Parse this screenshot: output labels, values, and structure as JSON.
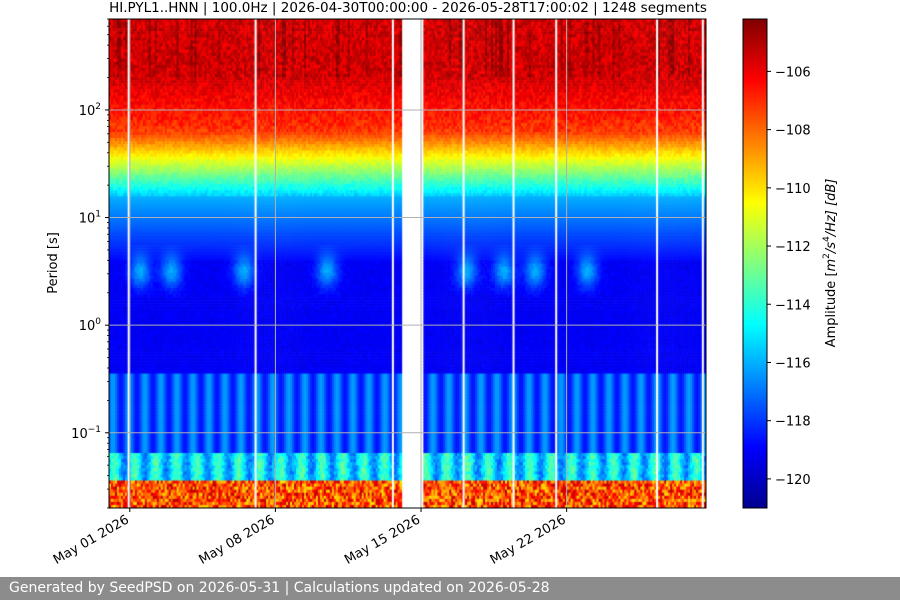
{
  "chart_data": {
    "type": "heatmap",
    "title": "HI.PYL1..HNN | 100.0Hz | 2026-04-30T00:00:00 - 2026-05-28T17:00:02 | 1248 segments",
    "ylabel": "Period [s]",
    "yscale": "log",
    "ylim": [
      0.02,
      700
    ],
    "y_ticks": [
      {
        "value": 0.1,
        "base": "10",
        "exp": "−1"
      },
      {
        "value": 1,
        "base": "10",
        "exp": "0"
      },
      {
        "value": 10,
        "base": "10",
        "exp": "1"
      },
      {
        "value": 100,
        "base": "10",
        "exp": "2"
      }
    ],
    "x_ticks": [
      {
        "day": 1,
        "label": "May 01 2026"
      },
      {
        "day": 8,
        "label": "May 08 2026"
      },
      {
        "day": 15,
        "label": "May 15 2026"
      },
      {
        "day": 22,
        "label": "May 22 2026"
      }
    ],
    "xlim_days": [
      0,
      28.7
    ],
    "data_gaps_days": [
      [
        14.1,
        15.1
      ]
    ],
    "grid": true,
    "colorbar": {
      "label_prefix": "Amplitude [",
      "label_unit": "m",
      "label_sup1": "2",
      "label_mid": "/s",
      "label_sup2": "4",
      "label_end": "/Hz] [dB]",
      "range": [
        -121,
        -104.2
      ],
      "ticks": [
        {
          "value": -106,
          "label": "−106"
        },
        {
          "value": -108,
          "label": "−108"
        },
        {
          "value": -110,
          "label": "−110"
        },
        {
          "value": -112,
          "label": "−112"
        },
        {
          "value": -114,
          "label": "−114"
        },
        {
          "value": -116,
          "label": "−116"
        },
        {
          "value": -118,
          "label": "−118"
        },
        {
          "value": -120,
          "label": "−120"
        }
      ],
      "colormap": "jet"
    }
  },
  "footer": {
    "text": "Generated by SeedPSD on 2026-05-31 | Calculations updated on 2026-05-28"
  }
}
